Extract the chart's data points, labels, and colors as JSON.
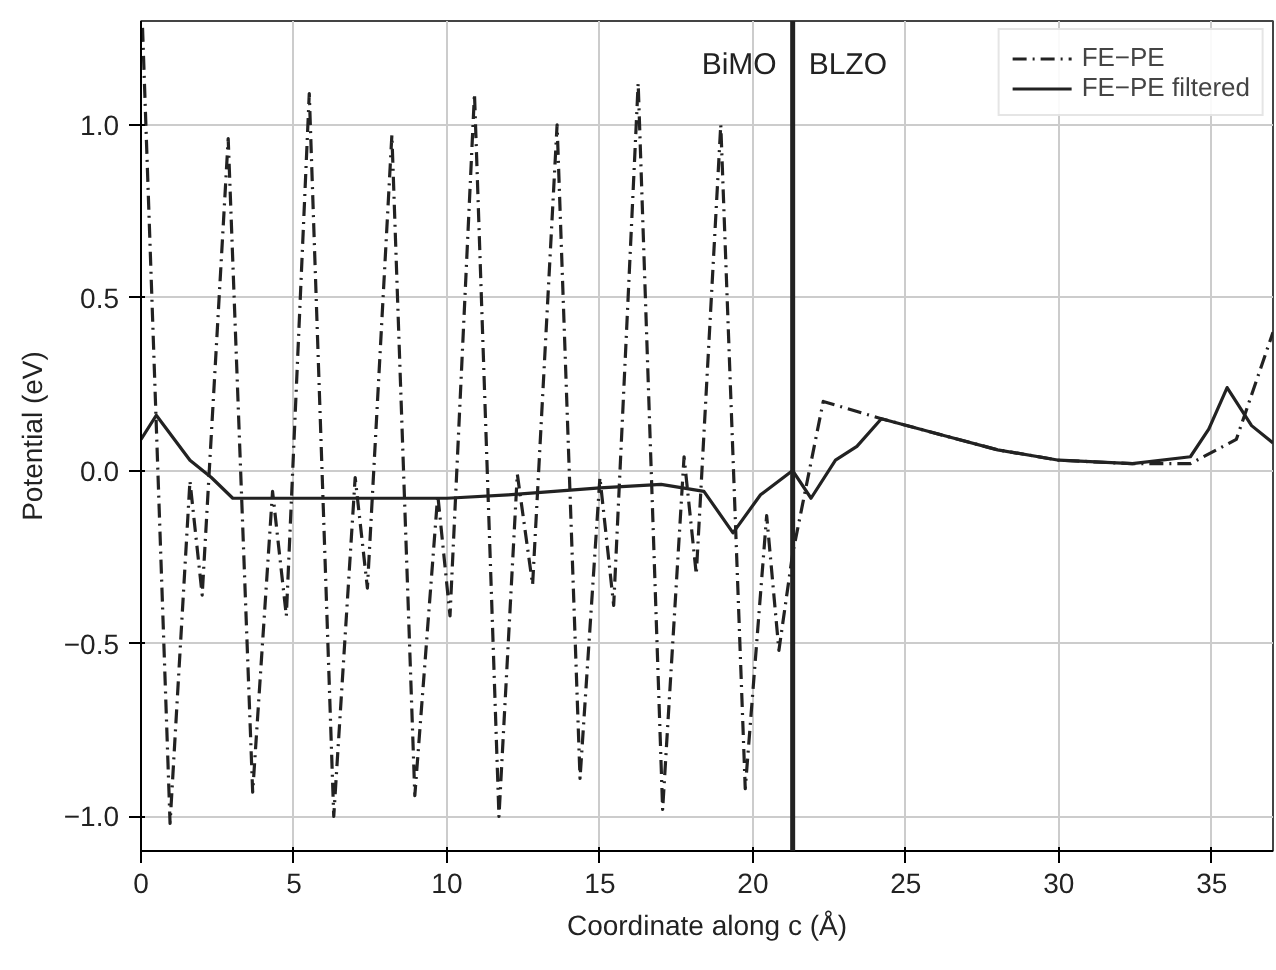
{
  "chart_data": {
    "type": "line",
    "xlabel": "Coordinate along c (Å)",
    "ylabel": "Potential (eV)",
    "xlim": [
      0,
      37
    ],
    "ylim": [
      -1.1,
      1.3
    ],
    "xticks": [
      0,
      5,
      10,
      15,
      20,
      25,
      30,
      35
    ],
    "yticks": [
      {
        "value": -1.0,
        "label": "−1.0"
      },
      {
        "value": -0.5,
        "label": "−0.5"
      },
      {
        "value": 0.0,
        "label": "0.0"
      },
      {
        "value": 0.5,
        "label": "0.5"
      },
      {
        "value": 1.0,
        "label": "1.0"
      }
    ],
    "grid": true,
    "legend": "top right",
    "series": [
      {
        "name": "FE−PE",
        "color": "#222222",
        "line_style": "dashdot",
        "x": [
          0.05,
          0.95,
          1.6,
          2.0,
          2.85,
          3.65,
          4.3,
          4.75,
          5.5,
          6.3,
          7.0,
          7.4,
          8.2,
          8.95,
          9.7,
          10.1,
          10.9,
          11.7,
          12.3,
          12.8,
          13.6,
          14.35,
          15.0,
          15.45,
          16.25,
          17.05,
          17.75,
          18.15,
          18.95,
          19.75,
          20.45,
          20.85,
          21.3,
          22.3,
          24.2,
          26.3,
          28.0,
          30.0,
          32.4,
          34.3,
          35.8,
          37.0
        ],
        "values": [
          1.28,
          -1.02,
          -0.03,
          -0.36,
          0.96,
          -0.93,
          -0.06,
          -0.42,
          1.09,
          -1.0,
          -0.02,
          -0.34,
          0.97,
          -0.94,
          -0.07,
          -0.42,
          1.09,
          -1.0,
          -0.01,
          -0.33,
          1.0,
          -0.89,
          -0.02,
          -0.39,
          1.12,
          -0.98,
          0.04,
          -0.3,
          1.0,
          -0.92,
          -0.13,
          -0.52,
          -0.24,
          0.2,
          0.15,
          0.1,
          0.06,
          0.03,
          0.02,
          0.02,
          0.09,
          0.4
        ]
      },
      {
        "name": "FE−PE filtered",
        "color": "#222222",
        "line_style": "solid",
        "x": [
          0.0,
          0.5,
          1.6,
          2.3,
          3.0,
          6.0,
          10.0,
          12.0,
          15.0,
          17.0,
          18.4,
          19.35,
          20.25,
          21.3,
          21.9,
          22.7,
          23.4,
          24.2,
          26.3,
          28.0,
          30.0,
          32.4,
          34.3,
          34.9,
          35.5,
          36.3,
          37.0
        ],
        "values": [
          0.09,
          0.16,
          0.03,
          -0.02,
          -0.08,
          -0.08,
          -0.08,
          -0.07,
          -0.05,
          -0.04,
          -0.06,
          -0.18,
          -0.07,
          0.0,
          -0.08,
          0.03,
          0.07,
          0.15,
          0.1,
          0.06,
          0.03,
          0.02,
          0.04,
          0.12,
          0.24,
          0.13,
          0.08
        ]
      }
    ],
    "ref_lines": [
      {
        "axis": "x",
        "value": 21.3,
        "color": "#222222",
        "line_style": "solid"
      }
    ],
    "annotations": [
      "BiMO",
      "BLZO"
    ]
  }
}
